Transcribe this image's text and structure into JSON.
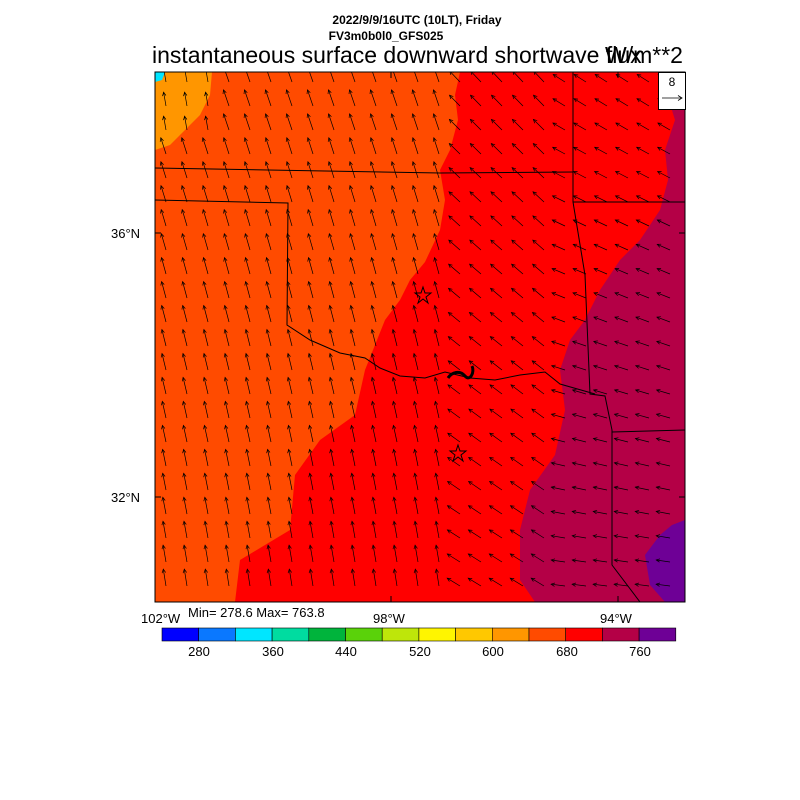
{
  "header": {
    "line1": "2022/9/9/16UTC (10LT), Friday",
    "line2": "FV3m0b0l0_GFS025"
  },
  "title": "instantaneous surface downward shortwave flux",
  "units": "W/m**2",
  "stats": {
    "text": "Min= 278.6 Max= 763.8"
  },
  "reference_vector": {
    "value": "8"
  },
  "axes": {
    "lat_labels": [
      "36°N",
      "32°N"
    ],
    "lon_labels": [
      "102°W",
      "98°W",
      "94°W"
    ]
  },
  "colorbar": {
    "colors": [
      "#0000ff",
      "#0a78ff",
      "#00e6ff",
      "#00dca0",
      "#00b43c",
      "#5ad20a",
      "#bee60a",
      "#fff500",
      "#ffc800",
      "#ff9600",
      "#ff4b00",
      "#ff0000",
      "#b40046",
      "#6e0096"
    ],
    "tick_labels": [
      "280",
      "360",
      "440",
      "520",
      "600",
      "680",
      "760"
    ]
  },
  "markers": {
    "cities": 2,
    "symbol": "star"
  }
}
